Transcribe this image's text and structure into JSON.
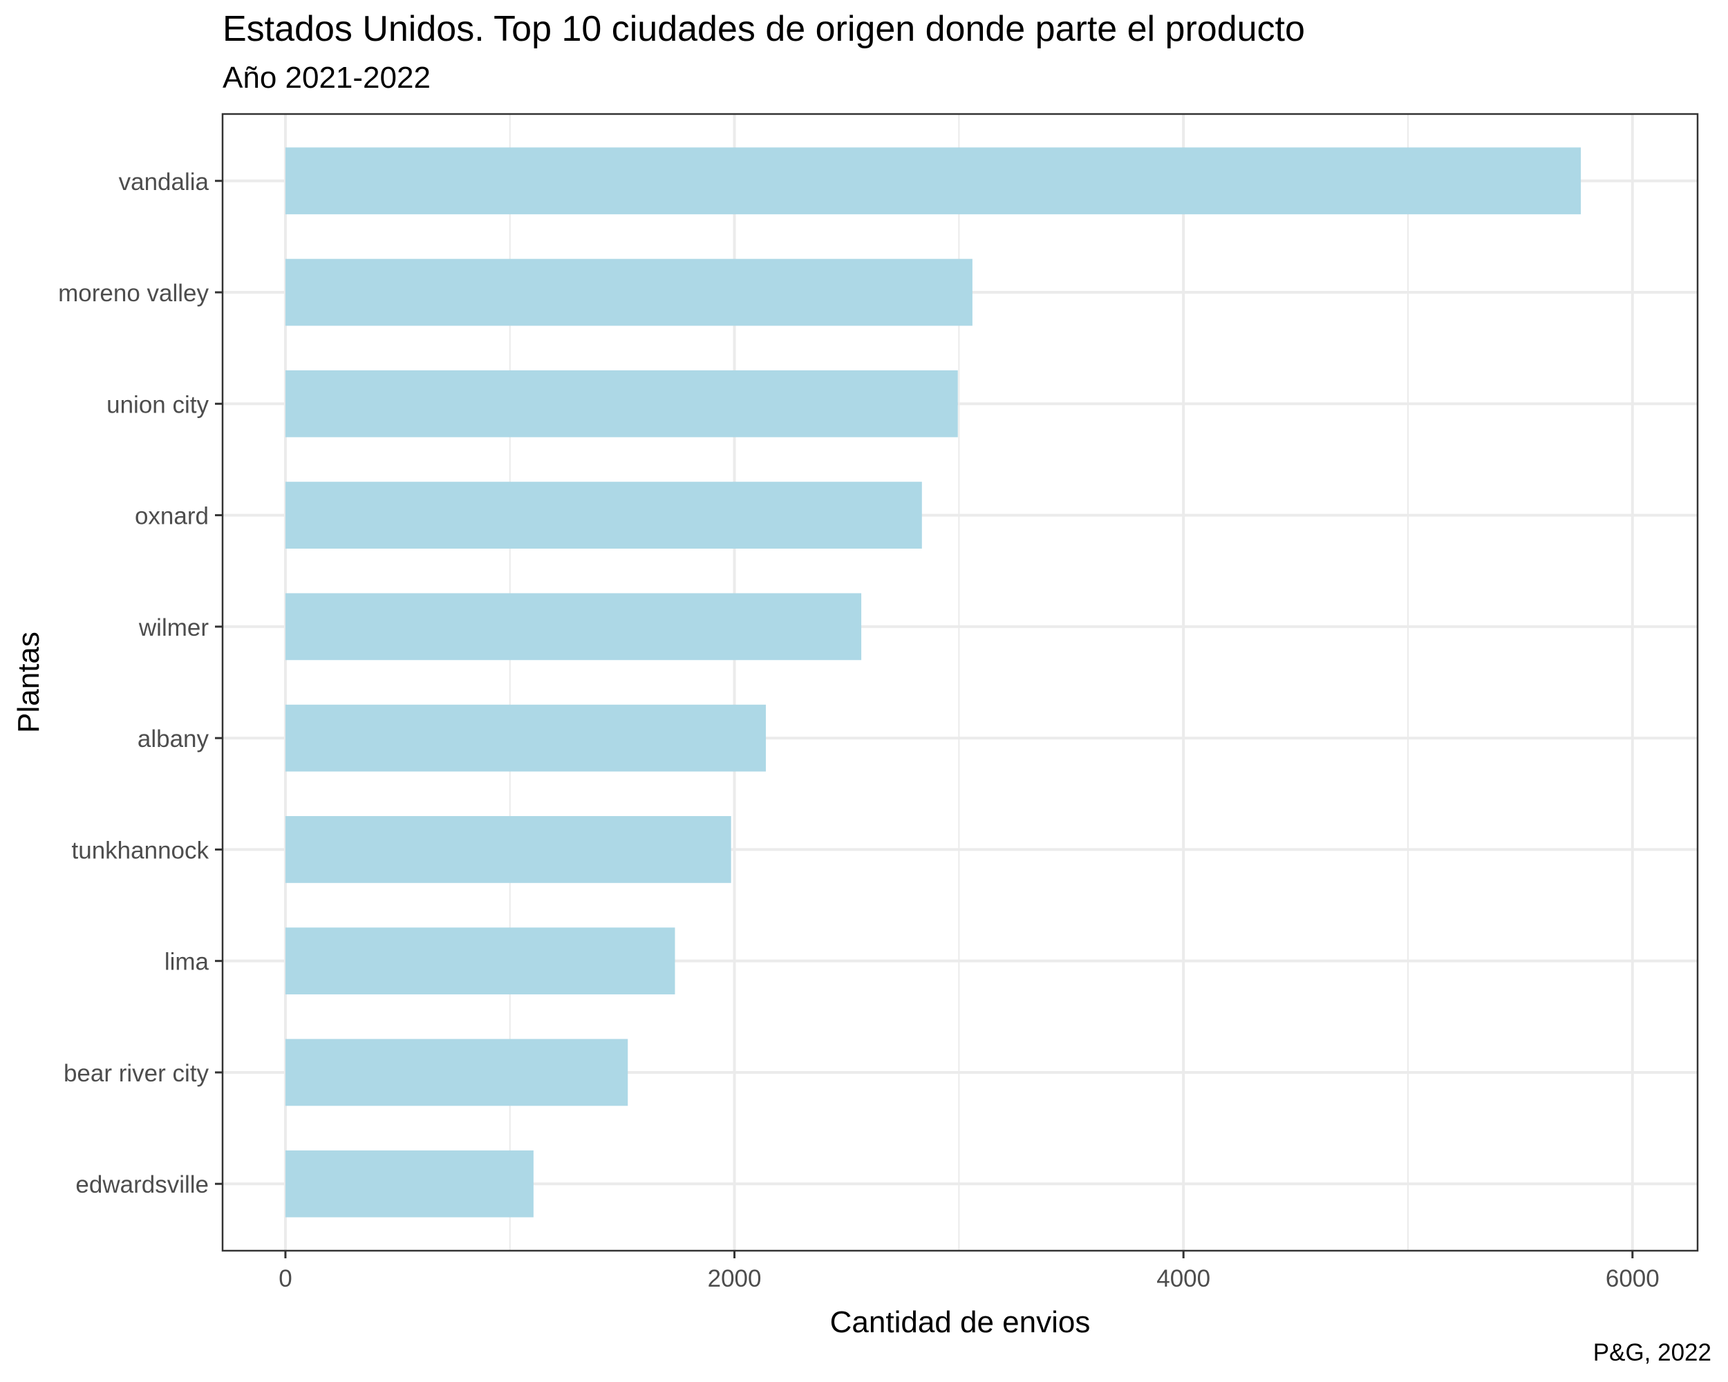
{
  "chart_data": {
    "type": "bar",
    "orientation": "horizontal",
    "title": "Estados Unidos. Top 10 ciudades de origen donde parte el producto",
    "subtitle": "Año 2021-2022",
    "caption": "P&G, 2022",
    "xlabel": "Cantidad de envios",
    "ylabel": "Plantas",
    "xlim": [
      -280,
      6000
    ],
    "xticks": [
      0,
      2000,
      4000,
      6000
    ],
    "xtick_labels": [
      "0",
      "2000",
      "4000",
      "6000"
    ],
    "grid": true,
    "bar_color": "#ADD8E6",
    "categories": [
      "vandalia",
      "moreno valley",
      "union city",
      "oxnard",
      "wilmer",
      "albany",
      "tunkhannock",
      "lima",
      "bear river city",
      "edwardsville"
    ],
    "values": [
      5770,
      3060,
      2995,
      2835,
      2565,
      2140,
      1985,
      1735,
      1525,
      1105
    ]
  }
}
